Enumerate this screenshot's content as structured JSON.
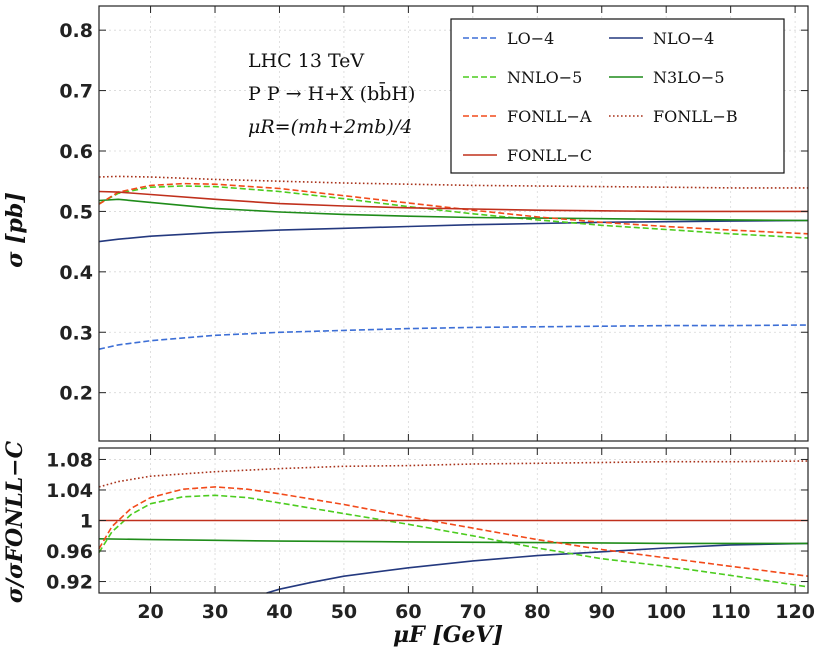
{
  "chart_data": [
    {
      "type": "line",
      "panel": "main",
      "xlim": [
        12,
        122
      ],
      "ylim": [
        0.12,
        0.84
      ],
      "ylabel": "σ [pb]",
      "xlabel": "",
      "yticks": [
        0.2,
        0.3,
        0.4,
        0.5,
        0.6,
        0.7,
        0.8
      ],
      "ytick_labels": [
        "0.2",
        "0.3",
        "0.4",
        "0.5",
        "0.6",
        "0.7",
        "0.8"
      ],
      "xticks": [
        20,
        30,
        40,
        50,
        60,
        70,
        80,
        90,
        100,
        110,
        120
      ],
      "grid": true,
      "legend_position": "top-right",
      "annotations": [
        "LHC 13 TeV",
        "P P → H+X (bb̄H)",
        "μR=(mh+2mb)/4"
      ],
      "series": [
        {
          "name": "LO−4",
          "color": "#3d6fd6",
          "style": "dashed",
          "x": [
            12,
            15,
            20,
            30,
            40,
            50,
            60,
            70,
            80,
            90,
            100,
            110,
            122
          ],
          "y": [
            0.272,
            0.279,
            0.286,
            0.295,
            0.3,
            0.303,
            0.306,
            0.308,
            0.309,
            0.31,
            0.311,
            0.311,
            0.312
          ]
        },
        {
          "name": "NLO−4",
          "color": "#24397f",
          "style": "solid",
          "x": [
            12,
            15,
            20,
            30,
            40,
            50,
            60,
            70,
            80,
            90,
            100,
            110,
            122
          ],
          "y": [
            0.45,
            0.454,
            0.459,
            0.465,
            0.469,
            0.472,
            0.475,
            0.478,
            0.48,
            0.482,
            0.483,
            0.484,
            0.485
          ]
        },
        {
          "name": "NNLO−5",
          "color": "#4ccc1f",
          "style": "dashed",
          "x": [
            12,
            15,
            20,
            25,
            30,
            40,
            50,
            60,
            70,
            80,
            90,
            100,
            110,
            122
          ],
          "y": [
            0.513,
            0.53,
            0.54,
            0.542,
            0.541,
            0.533,
            0.521,
            0.508,
            0.496,
            0.486,
            0.477,
            0.47,
            0.463,
            0.456
          ]
        },
        {
          "name": "N3LO−5",
          "color": "#1f8c1a",
          "style": "solid",
          "x": [
            12,
            15,
            20,
            30,
            40,
            50,
            60,
            70,
            80,
            90,
            100,
            110,
            122
          ],
          "y": [
            0.518,
            0.52,
            0.515,
            0.505,
            0.499,
            0.495,
            0.492,
            0.49,
            0.489,
            0.488,
            0.487,
            0.486,
            0.485
          ]
        },
        {
          "name": "FONLL−A",
          "color": "#f24a1a",
          "style": "dashed",
          "x": [
            12,
            15,
            20,
            25,
            30,
            40,
            50,
            60,
            70,
            80,
            90,
            100,
            110,
            122
          ],
          "y": [
            0.512,
            0.532,
            0.543,
            0.546,
            0.545,
            0.538,
            0.526,
            0.514,
            0.502,
            0.491,
            0.482,
            0.475,
            0.469,
            0.463
          ]
        },
        {
          "name": "FONLL−B",
          "color": "#a8321a",
          "style": "dotted",
          "x": [
            12,
            15,
            20,
            30,
            40,
            50,
            60,
            70,
            80,
            90,
            100,
            110,
            122
          ],
          "y": [
            0.557,
            0.558,
            0.557,
            0.553,
            0.55,
            0.547,
            0.545,
            0.543,
            0.542,
            0.541,
            0.54,
            0.539,
            0.539
          ]
        },
        {
          "name": "FONLL−C",
          "color": "#c0301c",
          "style": "solid",
          "x": [
            12,
            15,
            20,
            30,
            40,
            50,
            60,
            70,
            80,
            90,
            100,
            110,
            122
          ],
          "y": [
            0.533,
            0.532,
            0.528,
            0.52,
            0.513,
            0.509,
            0.506,
            0.504,
            0.502,
            0.501,
            0.5,
            0.5,
            0.5
          ]
        }
      ]
    },
    {
      "type": "line",
      "panel": "ratio",
      "xlim": [
        12,
        122
      ],
      "ylim": [
        0.905,
        1.095
      ],
      "xlabel": "μF [GeV]",
      "ylabel": "σ/σFONLL−C",
      "yticks": [
        0.92,
        0.96,
        1.0,
        1.04,
        1.08
      ],
      "ytick_labels": [
        "0.92",
        "0.96",
        "1",
        "1.04",
        "1.08"
      ],
      "xticks": [
        20,
        30,
        40,
        50,
        60,
        70,
        80,
        90,
        100,
        110,
        120
      ],
      "xtick_labels": [
        "20",
        "30",
        "40",
        "50",
        "60",
        "70",
        "80",
        "90",
        "100",
        "110",
        "120"
      ],
      "grid": true,
      "series": [
        {
          "name": "NLO−4",
          "color": "#24397f",
          "style": "solid",
          "x": [
            38,
            40,
            45,
            50,
            60,
            70,
            80,
            90,
            100,
            110,
            122
          ],
          "y": [
            0.905,
            0.91,
            0.919,
            0.927,
            0.938,
            0.947,
            0.954,
            0.959,
            0.964,
            0.968,
            0.97
          ]
        },
        {
          "name": "NNLO−5",
          "color": "#4ccc1f",
          "style": "dashed",
          "x": [
            12,
            14,
            17,
            20,
            25,
            30,
            35,
            40,
            50,
            60,
            70,
            80,
            90,
            100,
            110,
            122
          ],
          "y": [
            0.958,
            0.985,
            1.008,
            1.022,
            1.031,
            1.033,
            1.03,
            1.023,
            1.009,
            0.995,
            0.98,
            0.964,
            0.95,
            0.94,
            0.928,
            0.913
          ]
        },
        {
          "name": "N3LO−5",
          "color": "#1f8c1a",
          "style": "solid",
          "x": [
            12,
            20,
            30,
            40,
            60,
            80,
            100,
            122
          ],
          "y": [
            0.976,
            0.975,
            0.974,
            0.973,
            0.972,
            0.971,
            0.97,
            0.97
          ]
        },
        {
          "name": "FONLL−A",
          "color": "#f24a1a",
          "style": "dashed",
          "x": [
            12,
            14,
            17,
            20,
            25,
            30,
            35,
            40,
            50,
            60,
            70,
            80,
            90,
            100,
            110,
            122
          ],
          "y": [
            0.963,
            0.992,
            1.016,
            1.03,
            1.041,
            1.044,
            1.041,
            1.035,
            1.021,
            1.005,
            0.99,
            0.975,
            0.962,
            0.951,
            0.94,
            0.927
          ]
        },
        {
          "name": "FONLL−B",
          "color": "#a8321a",
          "style": "dotted",
          "x": [
            12,
            15,
            20,
            30,
            40,
            50,
            60,
            70,
            80,
            90,
            100,
            110,
            122
          ],
          "y": [
            1.044,
            1.051,
            1.058,
            1.064,
            1.068,
            1.071,
            1.072,
            1.074,
            1.075,
            1.076,
            1.077,
            1.077,
            1.078
          ]
        },
        {
          "name": "FONLL−C",
          "color": "#c0301c",
          "style": "solid",
          "x": [
            12,
            122
          ],
          "y": [
            1.0,
            1.0
          ]
        }
      ]
    }
  ]
}
